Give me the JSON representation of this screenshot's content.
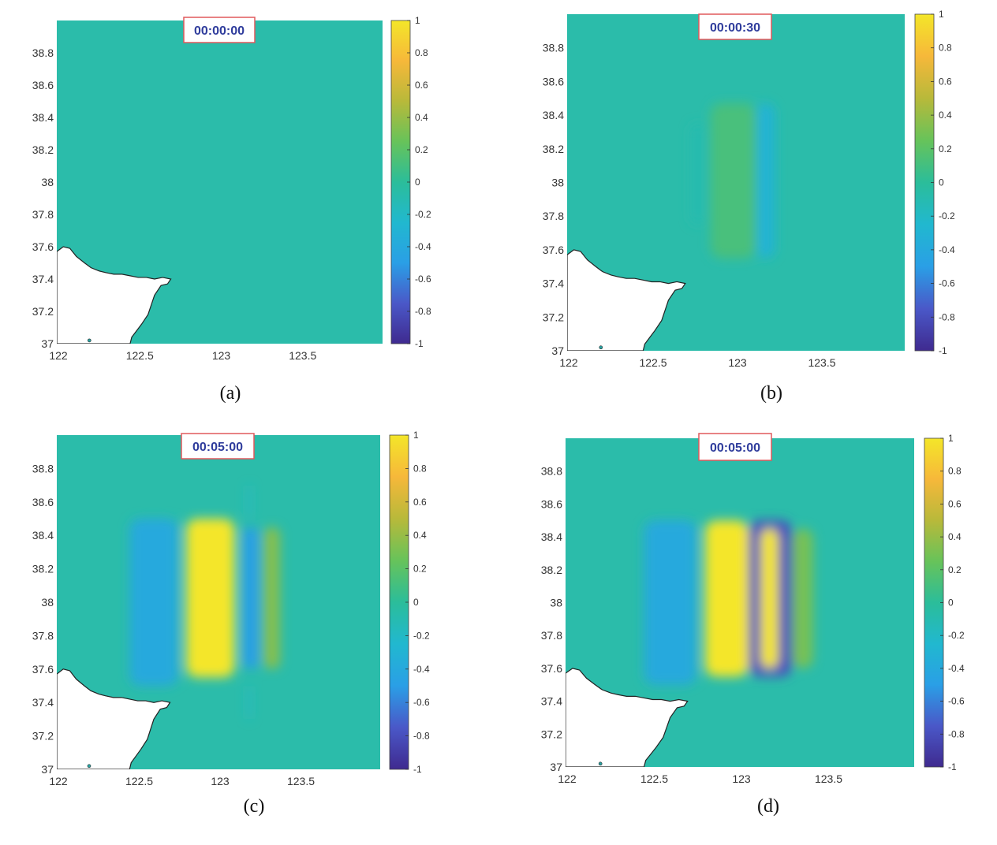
{
  "figure": {
    "colorbar_colors": [
      "#3f2a8f",
      "#4a58c8",
      "#2a9fe6",
      "#21b8cf",
      "#2bbd9a",
      "#67c35a",
      "#b8b93a",
      "#f6b83a",
      "#f4e629"
    ],
    "background_value_color": "#2bbcaa",
    "land_color": "#ffffff"
  },
  "chart_data": [
    {
      "type": "heatmap",
      "panel_label": "(a)",
      "timestamp": "00:00:00",
      "xlim": [
        122,
        124
      ],
      "ylim": [
        37,
        39
      ],
      "xticks": [
        "122",
        "122.5",
        "123",
        "123.5"
      ],
      "yticks": [
        "37",
        "37.2",
        "37.4",
        "37.6",
        "37.8",
        "38",
        "38.2",
        "38.4",
        "38.6",
        "38.8"
      ],
      "colorbar": {
        "range": [
          -1,
          1
        ],
        "ticks": [
          "1",
          "0.8",
          "0.6",
          "0.4",
          "0.2",
          "0",
          "-0.2",
          "-0.4",
          "-0.6",
          "-0.8",
          "-1"
        ]
      },
      "features": []
    },
    {
      "type": "heatmap",
      "panel_label": "(b)",
      "timestamp": "00:00:30",
      "xlim": [
        122,
        124
      ],
      "ylim": [
        37,
        39
      ],
      "xticks": [
        "122",
        "122.5",
        "123",
        "123.5"
      ],
      "yticks": [
        "37",
        "37.2",
        "37.4",
        "37.6",
        "37.8",
        "38",
        "38.2",
        "38.4",
        "38.6",
        "38.8"
      ],
      "colorbar": {
        "range": [
          -1,
          1
        ],
        "ticks": [
          "1",
          "0.8",
          "0.6",
          "0.4",
          "0.2",
          "0",
          "-0.2",
          "-0.4",
          "-0.6",
          "-0.8",
          "-1"
        ]
      },
      "features": [
        {
          "x": [
            122.73,
            122.82
          ],
          "y": [
            37.75,
            38.35
          ],
          "value": -0.1
        },
        {
          "x": [
            122.85,
            123.12
          ],
          "y": [
            37.55,
            38.47
          ],
          "value": 0.12
        },
        {
          "x": [
            123.12,
            123.23
          ],
          "y": [
            37.55,
            38.47
          ],
          "value": -0.3
        }
      ]
    },
    {
      "type": "heatmap",
      "panel_label": "(c)",
      "timestamp": "00:05:00",
      "xlim": [
        122,
        124
      ],
      "ylim": [
        37,
        39
      ],
      "xticks": [
        "122",
        "122.5",
        "123",
        "123.5"
      ],
      "yticks": [
        "37",
        "37.2",
        "37.4",
        "37.6",
        "37.8",
        "38",
        "38.2",
        "38.4",
        "38.6",
        "38.8"
      ],
      "colorbar": {
        "range": [
          -1,
          1
        ],
        "ticks": [
          "1",
          "0.8",
          "0.6",
          "0.4",
          "0.2",
          "0",
          "-0.2",
          "-0.4",
          "-0.6",
          "-0.8",
          "-1"
        ]
      },
      "features": [
        {
          "x": [
            123.18,
            123.2
          ],
          "y": [
            38.5,
            38.7
          ],
          "value": -0.25
        },
        {
          "x": [
            123.18,
            123.2
          ],
          "y": [
            37.3,
            37.5
          ],
          "value": -0.25
        },
        {
          "x": [
            122.45,
            122.75
          ],
          "y": [
            37.5,
            38.5
          ],
          "value": -0.4
        },
        {
          "x": [
            123.28,
            123.38
          ],
          "y": [
            37.6,
            38.45
          ],
          "value": 0.35
        },
        {
          "x": [
            122.8,
            123.1
          ],
          "y": [
            37.55,
            38.5
          ],
          "value": 1.0
        },
        {
          "x": [
            123.15,
            123.25
          ],
          "y": [
            37.6,
            38.45
          ],
          "value": -0.5
        }
      ]
    },
    {
      "type": "heatmap",
      "panel_label": "(d)",
      "timestamp": "00:05:00",
      "xlim": [
        122,
        124
      ],
      "ylim": [
        37,
        39
      ],
      "xticks": [
        "122",
        "122.5",
        "123",
        "123.5"
      ],
      "yticks": [
        "37",
        "37.2",
        "37.4",
        "37.6",
        "37.8",
        "38",
        "38.2",
        "38.4",
        "38.6",
        "38.8"
      ],
      "colorbar": {
        "range": [
          -1,
          1
        ],
        "ticks": [
          "1",
          "0.8",
          "0.6",
          "0.4",
          "0.2",
          "0",
          "-0.2",
          "-0.4",
          "-0.6",
          "-0.8",
          "-1"
        ]
      },
      "features": [
        {
          "x": [
            122.45,
            122.75
          ],
          "y": [
            37.5,
            38.5
          ],
          "value": -0.4
        },
        {
          "x": [
            123.3,
            123.42
          ],
          "y": [
            37.6,
            38.45
          ],
          "value": 0.3
        },
        {
          "x": [
            122.8,
            123.05
          ],
          "y": [
            37.55,
            38.5
          ],
          "value": 1.0
        },
        {
          "x": [
            123.05,
            123.3
          ],
          "y": [
            37.55,
            38.5
          ],
          "value": -0.8
        },
        {
          "x": [
            123.12,
            123.22
          ],
          "y": [
            37.6,
            38.45
          ],
          "value": 1.0
        }
      ]
    }
  ]
}
